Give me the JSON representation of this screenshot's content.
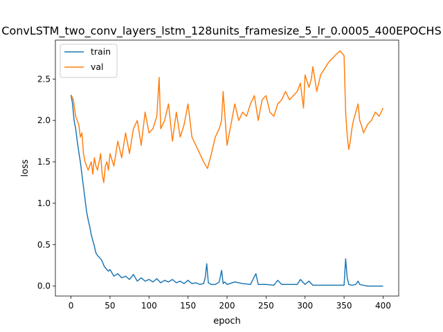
{
  "chart_data": {
    "type": "line",
    "title": "ConvLSTM_two_conv_layers_lstm_128units_framesize_5_lr_0.0005_400EPOCHS",
    "xlabel": "epoch",
    "ylabel": "loss",
    "xlim": [
      -20,
      420
    ],
    "ylim": [
      -0.12,
      2.97
    ],
    "xticks": [
      0,
      50,
      100,
      150,
      200,
      250,
      300,
      350,
      400
    ],
    "yticks": [
      0.0,
      0.5,
      1.0,
      1.5,
      2.0,
      2.5
    ],
    "grid": false,
    "legend_position": "upper-left",
    "series": [
      {
        "name": "train",
        "color": "#1f77b4",
        "x": [
          0,
          2,
          4,
          6,
          8,
          10,
          12,
          14,
          16,
          18,
          20,
          22,
          24,
          26,
          28,
          30,
          32,
          34,
          36,
          38,
          40,
          42,
          44,
          46,
          48,
          50,
          55,
          60,
          65,
          70,
          75,
          80,
          85,
          90,
          95,
          100,
          105,
          110,
          115,
          120,
          125,
          130,
          135,
          140,
          145,
          150,
          155,
          160,
          165,
          170,
          172,
          174,
          176,
          180,
          185,
          190,
          193,
          195,
          197,
          200,
          210,
          220,
          230,
          237,
          240,
          250,
          260,
          265,
          270,
          280,
          290,
          294,
          300,
          305,
          310,
          320,
          330,
          340,
          350,
          352,
          354,
          356,
          360,
          365,
          368,
          370,
          375,
          380,
          390,
          400
        ],
        "y": [
          2.31,
          2.2,
          2.0,
          1.9,
          1.75,
          1.62,
          1.5,
          1.35,
          1.2,
          1.05,
          0.9,
          0.8,
          0.72,
          0.62,
          0.55,
          0.48,
          0.4,
          0.37,
          0.35,
          0.33,
          0.3,
          0.25,
          0.22,
          0.2,
          0.18,
          0.2,
          0.12,
          0.15,
          0.1,
          0.12,
          0.08,
          0.14,
          0.06,
          0.1,
          0.06,
          0.08,
          0.05,
          0.09,
          0.04,
          0.07,
          0.05,
          0.08,
          0.04,
          0.06,
          0.03,
          0.07,
          0.03,
          0.04,
          0.02,
          0.03,
          0.1,
          0.27,
          0.04,
          0.02,
          0.02,
          0.05,
          0.19,
          0.03,
          0.05,
          0.02,
          0.05,
          0.03,
          0.02,
          0.15,
          0.02,
          0.02,
          0.01,
          0.07,
          0.02,
          0.02,
          0.02,
          0.08,
          0.02,
          0.06,
          0.01,
          0.01,
          0.01,
          0.01,
          0.01,
          0.33,
          0.1,
          0.02,
          0.01,
          0.02,
          0.06,
          0.02,
          0.01,
          0.0,
          0.0,
          0.0
        ]
      },
      {
        "name": "val",
        "color": "#ff7f0e",
        "x": [
          0,
          3,
          6,
          8,
          10,
          12,
          14,
          16,
          18,
          20,
          22,
          24,
          26,
          28,
          30,
          32,
          34,
          36,
          38,
          40,
          42,
          44,
          46,
          48,
          50,
          55,
          60,
          65,
          70,
          75,
          80,
          85,
          90,
          95,
          100,
          105,
          110,
          113,
          115,
          120,
          125,
          130,
          135,
          140,
          145,
          150,
          155,
          160,
          165,
          170,
          175,
          180,
          185,
          190,
          193,
          195,
          200,
          205,
          210,
          215,
          220,
          225,
          230,
          235,
          240,
          245,
          250,
          255,
          260,
          265,
          270,
          275,
          280,
          285,
          290,
          294,
          298,
          300,
          305,
          308,
          310,
          315,
          320,
          330,
          340,
          345,
          350,
          352,
          354,
          356,
          358,
          360,
          362,
          365,
          368,
          370,
          372,
          375,
          380,
          385,
          390,
          395,
          400
        ],
        "y": [
          2.31,
          2.25,
          2.05,
          2.0,
          1.95,
          1.8,
          1.85,
          1.6,
          1.5,
          1.45,
          1.4,
          1.45,
          1.5,
          1.35,
          1.55,
          1.45,
          1.4,
          1.5,
          1.6,
          1.35,
          1.25,
          1.45,
          1.5,
          1.4,
          1.6,
          1.45,
          1.75,
          1.55,
          1.85,
          1.6,
          1.9,
          2.0,
          1.7,
          2.1,
          1.85,
          1.9,
          2.05,
          2.52,
          1.9,
          2.0,
          2.2,
          1.75,
          2.1,
          1.8,
          1.95,
          2.2,
          1.8,
          1.7,
          1.6,
          1.5,
          1.42,
          1.6,
          1.8,
          1.9,
          2.0,
          2.35,
          1.7,
          1.95,
          2.2,
          2.0,
          2.1,
          2.05,
          2.2,
          2.3,
          2.0,
          2.25,
          2.3,
          2.1,
          2.05,
          2.2,
          2.25,
          2.35,
          2.25,
          2.3,
          2.35,
          2.45,
          2.15,
          2.55,
          2.4,
          2.5,
          2.65,
          2.35,
          2.55,
          2.7,
          2.8,
          2.84,
          2.78,
          2.1,
          1.82,
          1.65,
          1.75,
          1.9,
          2.0,
          2.1,
          2.2,
          2.0,
          1.95,
          1.85,
          1.95,
          2.0,
          2.1,
          2.05,
          2.15
        ]
      }
    ]
  }
}
